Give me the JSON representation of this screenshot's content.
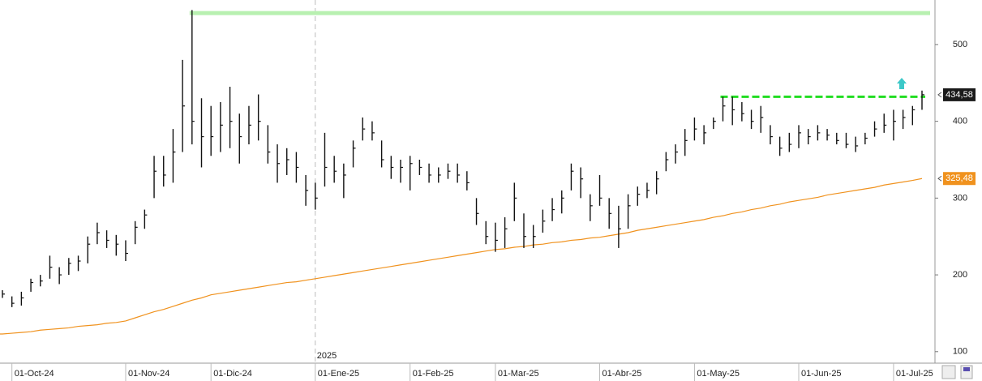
{
  "chart_data": {
    "type": "ohlc",
    "high": [
      180,
      172,
      178,
      195,
      200,
      225,
      210,
      222,
      225,
      250,
      268,
      258,
      252,
      245,
      270,
      285,
      355,
      355,
      390,
      480,
      545,
      430,
      420,
      425,
      445,
      410,
      420,
      435,
      395,
      370,
      365,
      360,
      330,
      320,
      385,
      355,
      345,
      375,
      405,
      400,
      375,
      355,
      350,
      355,
      350,
      345,
      340,
      345,
      345,
      335,
      300,
      270,
      268,
      275,
      320,
      280,
      265,
      285,
      300,
      310,
      345,
      340,
      305,
      330,
      300,
      290,
      305,
      315,
      320,
      335,
      360,
      370,
      390,
      405,
      395,
      405,
      432,
      432,
      425,
      415,
      420,
      395,
      380,
      385,
      395,
      390,
      395,
      390,
      385,
      385,
      380,
      385,
      400,
      410,
      415,
      415,
      420,
      440
    ],
    "low": [
      170,
      158,
      160,
      178,
      185,
      195,
      188,
      200,
      205,
      215,
      240,
      235,
      225,
      218,
      240,
      260,
      300,
      315,
      320,
      360,
      370,
      340,
      355,
      360,
      365,
      345,
      370,
      375,
      345,
      320,
      330,
      320,
      290,
      285,
      315,
      320,
      300,
      340,
      375,
      375,
      340,
      325,
      320,
      310,
      330,
      320,
      320,
      325,
      320,
      310,
      265,
      240,
      230,
      235,
      270,
      235,
      235,
      255,
      270,
      280,
      310,
      300,
      270,
      290,
      260,
      235,
      260,
      290,
      300,
      305,
      335,
      345,
      355,
      375,
      370,
      390,
      400,
      395,
      400,
      390,
      385,
      370,
      355,
      360,
      365,
      370,
      375,
      375,
      370,
      365,
      360,
      370,
      380,
      385,
      375,
      390,
      395,
      415
    ],
    "close": [
      175,
      163,
      170,
      190,
      192,
      210,
      200,
      215,
      218,
      240,
      255,
      245,
      240,
      228,
      262,
      278,
      335,
      330,
      360,
      420,
      400,
      380,
      380,
      395,
      400,
      380,
      395,
      400,
      360,
      345,
      350,
      340,
      310,
      300,
      340,
      335,
      330,
      365,
      390,
      385,
      350,
      340,
      340,
      345,
      340,
      330,
      330,
      335,
      330,
      320,
      280,
      250,
      245,
      260,
      300,
      250,
      250,
      270,
      285,
      300,
      335,
      325,
      290,
      300,
      280,
      260,
      290,
      305,
      310,
      325,
      350,
      360,
      375,
      390,
      385,
      400,
      420,
      415,
      410,
      400,
      405,
      380,
      365,
      370,
      385,
      380,
      385,
      382,
      375,
      370,
      368,
      378,
      390,
      395,
      400,
      405,
      415,
      434.58
    ],
    "ma": [
      123,
      124,
      125,
      126,
      128,
      129,
      130,
      131,
      133,
      134,
      135,
      137,
      138,
      140,
      144,
      148,
      152,
      155,
      159,
      163,
      167,
      170,
      174,
      176,
      178,
      180,
      182,
      184,
      186,
      188,
      190,
      191,
      193,
      195,
      197,
      199,
      201,
      203,
      205,
      207,
      209,
      211,
      213,
      215,
      217,
      219,
      221,
      223,
      225,
      227,
      229,
      231,
      233,
      234,
      236,
      237,
      239,
      240,
      242,
      243,
      245,
      246,
      248,
      249,
      251,
      253,
      255,
      258,
      260,
      262,
      264,
      266,
      268,
      270,
      272,
      275,
      277,
      280,
      282,
      285,
      287,
      290,
      292,
      295,
      297,
      299,
      301,
      304,
      306,
      308,
      310,
      312,
      314,
      317,
      319,
      321,
      323,
      325.48
    ],
    "bar_color": "#111111",
    "ma_color": "#f0921e",
    "ylim": [
      85,
      558
    ],
    "yticks": [
      100,
      200,
      300,
      400,
      500
    ],
    "xticks": [
      {
        "value": 1,
        "label": "01-Oct-24"
      },
      {
        "value": 13,
        "label": "01-Nov-24"
      },
      {
        "value": 22,
        "label": "01-Dic-24"
      },
      {
        "value": 33,
        "label": "01-Ene-25"
      },
      {
        "value": 43,
        "label": "01-Feb-25"
      },
      {
        "value": 52,
        "label": "01-Mar-25"
      },
      {
        "value": 63,
        "label": "01-Abr-25"
      },
      {
        "value": 73,
        "label": "01-May-25"
      },
      {
        "value": 84,
        "label": "01-Jun-25"
      },
      {
        "value": 94,
        "label": "01-Jul-25"
      }
    ],
    "year_marker": {
      "index": 33,
      "label": "2025"
    },
    "levels": [
      {
        "value": 541,
        "from": 20,
        "color": "#b8f0b0",
        "dashed": false
      },
      {
        "value": 432,
        "from": 76,
        "color": "#22dd22",
        "dashed": true
      }
    ],
    "price_labels": [
      {
        "value": 434.58,
        "label": "434,58",
        "color": "#1a1a1a"
      },
      {
        "value": 325.48,
        "label": "325,48",
        "color": "#f0921e"
      }
    ]
  }
}
